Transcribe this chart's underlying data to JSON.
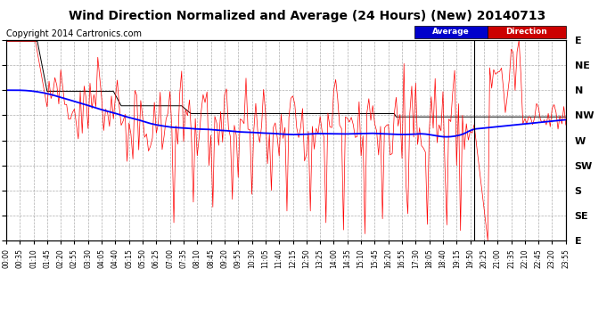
{
  "title": "Wind Direction Normalized and Average (24 Hours) (New) 20140713",
  "copyright": "Copyright 2014 Cartronics.com",
  "ytick_labels": [
    "E",
    "NE",
    "N",
    "NW",
    "W",
    "SW",
    "S",
    "SE",
    "E"
  ],
  "ytick_values": [
    0,
    45,
    90,
    135,
    180,
    225,
    270,
    315,
    360
  ],
  "ylim": [
    360,
    0
  ],
  "grid_color": "#999999",
  "grid_linestyle": "--",
  "background_color": "#ffffff",
  "plot_bg_color": "#ffffff",
  "direction_color": "#ff0000",
  "average_color": "#0000ff",
  "black_line_color": "#000000",
  "title_fontsize": 10,
  "copyright_fontsize": 7,
  "tick_fontsize": 7,
  "n_points": 288,
  "minutes_per_point": 5,
  "tick_interval_minutes": 35
}
